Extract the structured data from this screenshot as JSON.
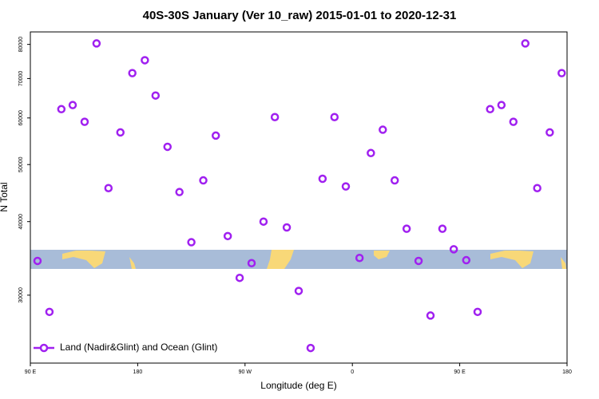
{
  "chart_data": {
    "type": "scatter",
    "title": "40S-30S January (Ver 10_raw)   2015-01-01 to 2020-12-31",
    "x_label": "Longitude (deg E)",
    "y_label": "N Total",
    "xlim": [
      90,
      540
    ],
    "xticks": [
      {
        "value": 90,
        "label": "90 E"
      },
      {
        "value": 180,
        "label": "180"
      },
      {
        "value": 270,
        "label": "90 W"
      },
      {
        "value": 360,
        "label": "0"
      },
      {
        "value": 450,
        "label": "90 E"
      },
      {
        "value": 540,
        "label": "180"
      }
    ],
    "ylim": [
      23000,
      84000
    ],
    "log_y": true,
    "yticks": [
      30000,
      40000,
      50000,
      60000,
      70000,
      80000
    ],
    "legend": "lower left",
    "series": [
      {
        "name": "Land (Nadir&Glint) and Ocean (Glint)",
        "color": "#a020f0",
        "x": [
          96,
          106,
          116,
          125.5,
          135.5,
          145.5,
          155.5,
          165.5,
          175.5,
          186,
          195,
          205,
          215,
          225,
          235,
          245.5,
          255.5,
          265.5,
          275.5,
          285.5,
          295,
          305,
          315,
          325,
          335,
          345,
          354.5,
          366,
          375.5,
          385.5,
          395.5,
          405.5,
          415.5,
          425.5,
          435.5,
          445,
          455.5,
          465,
          475.5,
          485,
          495,
          505,
          515,
          525.5,
          535.5
        ],
        "values": [
          34300,
          28100,
          62100,
          63100,
          59100,
          80300,
          45600,
          56700,
          71500,
          75200,
          65500,
          53600,
          44900,
          36900,
          47000,
          56000,
          37800,
          32100,
          34000,
          40000,
          60200,
          39100,
          30500,
          24400,
          47300,
          60200,
          45900,
          34700,
          52300,
          57300,
          47000,
          38900,
          34300,
          27700,
          38900,
          35900,
          34400,
          28100,
          62100,
          63100,
          59100,
          80300,
          45600,
          56700,
          71500
        ]
      }
    ]
  }
}
